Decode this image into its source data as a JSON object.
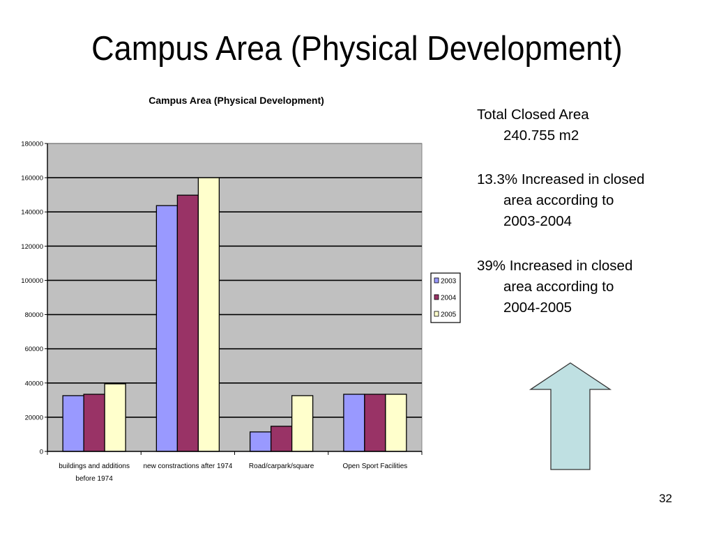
{
  "slide": {
    "title": "Campus Area (Physical Development)",
    "page_number": "32"
  },
  "bullets": {
    "item1_line1": "Total Closed Area",
    "item1_line2": "240.755 m2",
    "item2_line1": "13.3% Increased in closed",
    "item2_line2": "area according to",
    "item2_line3": "2003-2004",
    "item3_line1": "39% Increased in closed",
    "item3_line2": "area according to",
    "item3_line3": "2004-2005"
  },
  "arrow": {
    "icon": "up-arrow-icon",
    "fill": "#bfe0e2",
    "stroke": "#333333"
  },
  "chart_data": {
    "type": "bar",
    "title": "Campus Area (Physical Development)",
    "xlabel": "",
    "ylabel": "",
    "ylim": [
      0,
      180000
    ],
    "yticks": [
      "0",
      "20000",
      "40000",
      "60000",
      "80000",
      "100000",
      "120000",
      "140000",
      "160000",
      "180000"
    ],
    "grid": true,
    "legend_position": "right",
    "plot_background": "#c0c0c0",
    "categories": [
      [
        "buildings and additions",
        "before 1974"
      ],
      [
        "new constractions after 1974"
      ],
      [
        "Road/carpark/square"
      ],
      [
        "Open Sport Facilities"
      ]
    ],
    "series": [
      {
        "name": "2003",
        "color": "#9999ff",
        "values": [
          32600,
          143700,
          11400,
          33400
        ]
      },
      {
        "name": "2004",
        "color": "#993366",
        "values": [
          33400,
          149800,
          14700,
          33400
        ]
      },
      {
        "name": "2005",
        "color": "#ffffcc",
        "values": [
          39500,
          160000,
          32600,
          33400
        ]
      }
    ]
  }
}
